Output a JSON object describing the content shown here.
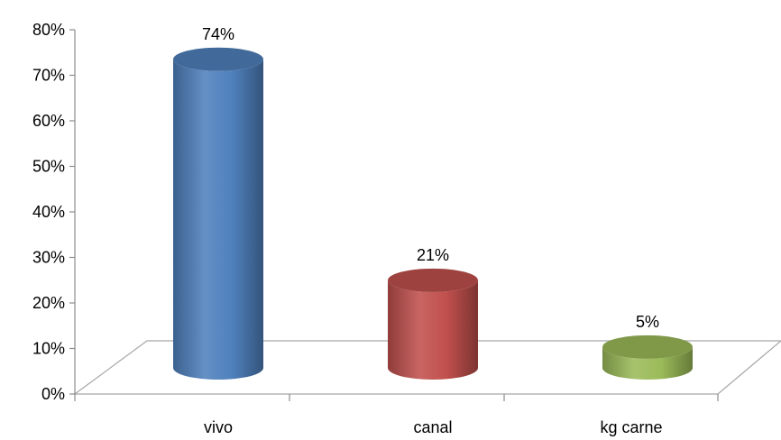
{
  "chart_data": {
    "type": "bar",
    "style": "3d-cylinder",
    "categories": [
      "vivo",
      "canal",
      "kg carne"
    ],
    "values": [
      74,
      21,
      5
    ],
    "data_labels": [
      "74%",
      "21%",
      "5%"
    ],
    "colors": [
      "#4F81BD",
      "#C0504D",
      "#9BBB59"
    ],
    "title": "",
    "xlabel": "",
    "ylabel": "",
    "ylim": [
      0,
      80
    ],
    "y_ticks": [
      0,
      10,
      20,
      30,
      40,
      50,
      60,
      70,
      80
    ],
    "y_tick_labels": [
      "0%",
      "10%",
      "20%",
      "30%",
      "40%",
      "50%",
      "60%",
      "70%",
      "80%"
    ],
    "grid": false,
    "legend": "none"
  }
}
